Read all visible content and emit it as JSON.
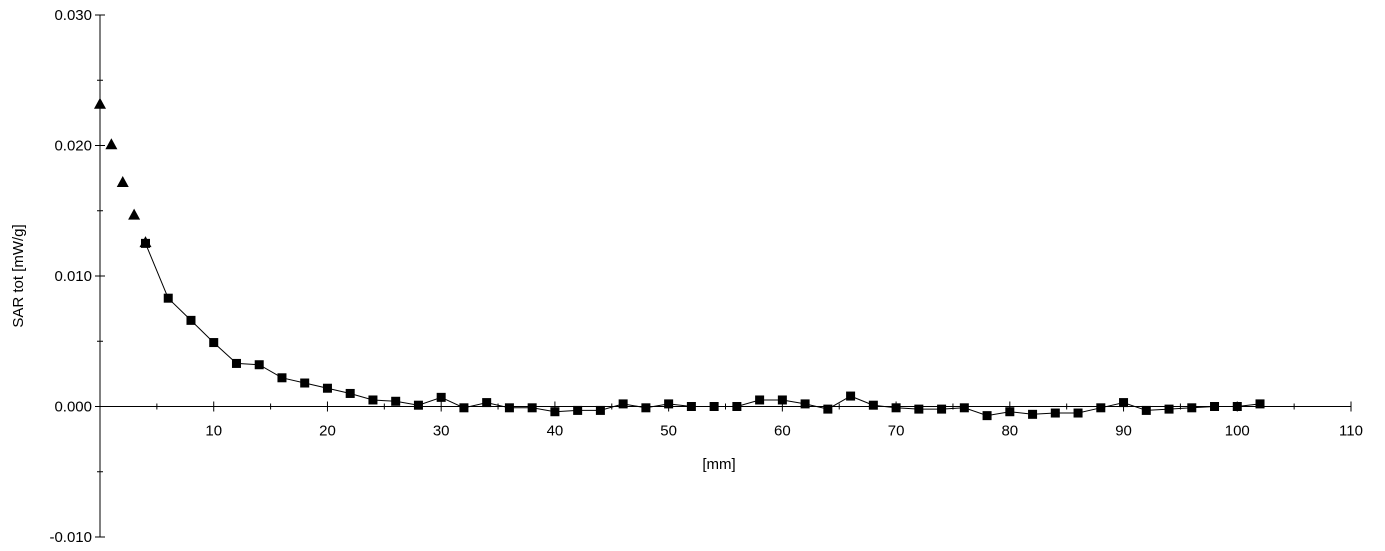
{
  "chart_data": {
    "type": "scatter",
    "title": "",
    "xlabel": "[mm]",
    "ylabel": "SAR tot [mW/g]",
    "xlim": [
      0,
      110
    ],
    "ylim": [
      -0.01,
      0.03
    ],
    "x_ticks": [
      10,
      20,
      30,
      40,
      50,
      60,
      70,
      80,
      90,
      100,
      110
    ],
    "x_tick_labels": [
      "10",
      "20",
      "30",
      "40",
      "50",
      "60",
      "70",
      "80",
      "90",
      "100",
      "110"
    ],
    "y_ticks": [
      0.03,
      0.02,
      0.01,
      0.0,
      -0.01
    ],
    "y_tick_labels": [
      "0.030",
      "0.020",
      "0.010",
      "0.000",
      "-0.010"
    ],
    "grid": false,
    "legend": "none",
    "series": [
      {
        "marker": "triangle",
        "line": false,
        "color": "#000000",
        "x": [
          0,
          1,
          2,
          3,
          4
        ],
        "y": [
          0.0232,
          0.0201,
          0.0172,
          0.0147,
          0.0126
        ]
      },
      {
        "marker": "square",
        "line": true,
        "color": "#000000",
        "x": [
          4,
          6,
          8,
          10,
          12,
          14,
          16,
          18,
          20,
          22,
          24,
          26,
          28,
          30,
          32,
          34,
          36,
          38,
          40,
          42,
          44,
          46,
          48,
          50,
          52,
          54,
          56,
          58,
          60,
          62,
          64,
          66,
          68,
          70,
          72,
          74,
          76,
          78,
          80,
          82,
          84,
          86,
          88,
          90,
          92,
          94,
          96,
          98,
          100,
          102
        ],
        "y": [
          0.0125,
          0.0083,
          0.0066,
          0.0049,
          0.0033,
          0.0032,
          0.0022,
          0.0018,
          0.0014,
          0.001,
          0.0005,
          0.0004,
          0.0001,
          0.0007,
          -0.0001,
          0.0003,
          -0.0001,
          -0.0001,
          -0.0004,
          -0.0003,
          -0.0003,
          0.0002,
          -0.0001,
          0.0002,
          0.0,
          0.0,
          0.0,
          0.0005,
          0.0005,
          0.0002,
          -0.0002,
          0.0008,
          0.0001,
          -0.0001,
          -0.0002,
          -0.0002,
          -0.0001,
          -0.0007,
          -0.0004,
          -0.0006,
          -0.0005,
          -0.0005,
          -0.0001,
          0.0003,
          -0.0003,
          -0.0002,
          -0.0001,
          0.0,
          0.0,
          0.0002
        ]
      }
    ]
  }
}
